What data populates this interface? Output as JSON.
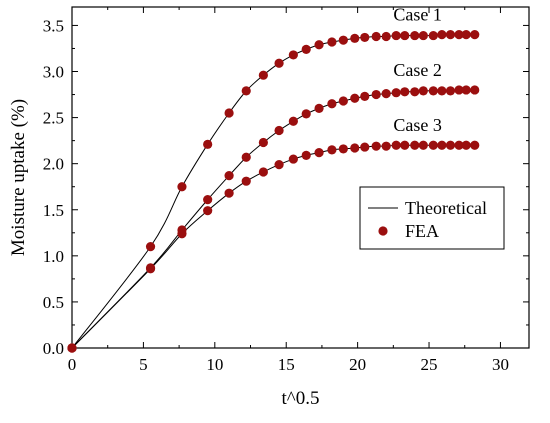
{
  "chart_data": {
    "type": "line",
    "xlabel": "t^0.5",
    "ylabel": "Moisture uptake (%)",
    "xlim": [
      0,
      32
    ],
    "ylim": [
      0,
      3.7
    ],
    "xticks": [
      0,
      5,
      10,
      15,
      20,
      25,
      30
    ],
    "yticks": [
      0.0,
      0.5,
      1.0,
      1.5,
      2.0,
      2.5,
      3.0,
      3.5
    ],
    "xtick_labels": [
      "0",
      "5",
      "10",
      "15",
      "20",
      "25",
      "30"
    ],
    "ytick_labels": [
      "0.0",
      "0.5",
      "1.0",
      "1.5",
      "2.0",
      "2.5",
      "3.0",
      "3.5"
    ],
    "grid": false,
    "legend": {
      "placement": "right",
      "entries": [
        {
          "label": "Theoretical",
          "marker": "line",
          "color": "#000000"
        },
        {
          "label": "FEA",
          "marker": "circle",
          "color": "#9b0f0f"
        }
      ]
    },
    "marker_color": "#9b0f0f",
    "series": [
      {
        "name": "Case 1",
        "x": [
          0,
          5.5,
          7.7,
          9.5,
          11.0,
          12.2,
          13.4,
          14.5,
          15.5,
          16.4,
          17.3,
          18.2,
          19.0,
          19.8,
          20.5,
          21.3,
          22.0,
          22.7,
          23.3,
          24.0,
          24.6,
          25.3,
          25.9,
          26.5,
          27.1,
          27.6,
          28.2
        ],
        "y": [
          0,
          1.1,
          1.75,
          2.21,
          2.55,
          2.79,
          2.96,
          3.09,
          3.18,
          3.24,
          3.29,
          3.32,
          3.34,
          3.36,
          3.37,
          3.38,
          3.38,
          3.39,
          3.39,
          3.39,
          3.39,
          3.39,
          3.4,
          3.4,
          3.4,
          3.4,
          3.4
        ]
      },
      {
        "name": "Case 2",
        "x": [
          0,
          5.5,
          7.7,
          9.5,
          11.0,
          12.2,
          13.4,
          14.5,
          15.5,
          16.4,
          17.3,
          18.2,
          19.0,
          19.8,
          20.5,
          21.3,
          22.0,
          22.7,
          23.3,
          24.0,
          24.6,
          25.3,
          25.9,
          26.5,
          27.1,
          27.6,
          28.2
        ],
        "y": [
          0,
          0.87,
          1.28,
          1.61,
          1.87,
          2.07,
          2.23,
          2.36,
          2.46,
          2.54,
          2.6,
          2.65,
          2.68,
          2.71,
          2.73,
          2.75,
          2.76,
          2.77,
          2.78,
          2.78,
          2.79,
          2.79,
          2.79,
          2.79,
          2.8,
          2.8,
          2.8
        ]
      },
      {
        "name": "Case 3",
        "x": [
          0,
          5.5,
          7.7,
          9.5,
          11.0,
          12.2,
          13.4,
          14.5,
          15.5,
          16.4,
          17.3,
          18.2,
          19.0,
          19.8,
          20.5,
          21.3,
          22.0,
          22.7,
          23.3,
          24.0,
          24.6,
          25.3,
          25.9,
          26.5,
          27.1,
          27.6,
          28.2
        ],
        "y": [
          0,
          0.86,
          1.24,
          1.49,
          1.68,
          1.81,
          1.91,
          1.99,
          2.05,
          2.09,
          2.12,
          2.15,
          2.16,
          2.17,
          2.18,
          2.19,
          2.19,
          2.2,
          2.2,
          2.2,
          2.2,
          2.2,
          2.2,
          2.2,
          2.2,
          2.2,
          2.2
        ]
      }
    ]
  }
}
